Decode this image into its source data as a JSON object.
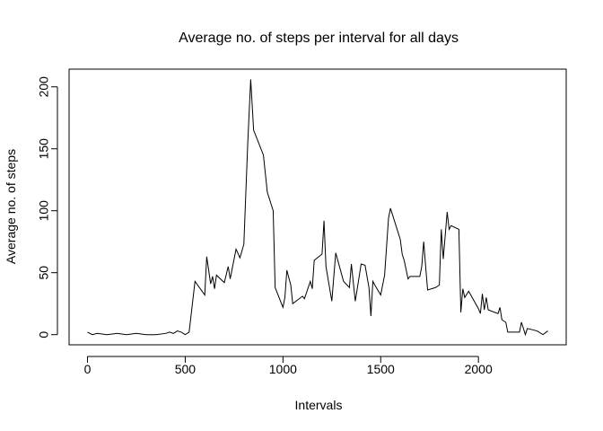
{
  "chart_data": {
    "type": "line",
    "title": "Average no. of steps per interval for all days",
    "xlabel": "Intervals",
    "ylabel": "Average no. of steps",
    "xlim": [
      -94,
      2449
    ],
    "ylim": [
      -8.2,
      214.3
    ],
    "x_ticks": [
      0,
      500,
      1000,
      1500,
      2000
    ],
    "y_ticks": [
      0,
      50,
      100,
      150,
      200
    ],
    "x_tick_labels": [
      "0",
      "500",
      "1000",
      "1500",
      "2000"
    ],
    "y_tick_labels": [
      "0",
      "50",
      "100",
      "150",
      "200"
    ],
    "grid": false,
    "line_color": "#000000",
    "x": [
      0,
      25,
      50,
      100,
      150,
      200,
      250,
      300,
      350,
      400,
      420,
      440,
      460,
      480,
      500,
      520,
      550,
      600,
      610,
      630,
      640,
      650,
      660,
      700,
      720,
      730,
      760,
      780,
      800,
      820,
      825,
      835,
      850,
      900,
      920,
      950,
      960,
      1000,
      1010,
      1020,
      1040,
      1050,
      1100,
      1110,
      1140,
      1150,
      1160,
      1200,
      1210,
      1220,
      1250,
      1270,
      1310,
      1340,
      1350,
      1370,
      1400,
      1420,
      1440,
      1450,
      1460,
      1470,
      1500,
      1520,
      1540,
      1550,
      1600,
      1610,
      1620,
      1640,
      1650,
      1700,
      1710,
      1720,
      1730,
      1740,
      1780,
      1800,
      1810,
      1820,
      1840,
      1850,
      1860,
      1900,
      1910,
      1920,
      1930,
      1950,
      2000,
      2010,
      2020,
      2030,
      2040,
      2050,
      2100,
      2110,
      2120,
      2140,
      2150,
      2200,
      2210,
      2220,
      2240,
      2250,
      2300,
      2330,
      2355
    ],
    "y": [
      2,
      0,
      1,
      0,
      1,
      0,
      1,
      0,
      0,
      1,
      2,
      1,
      3,
      2,
      0,
      2,
      43,
      32,
      63,
      41,
      47,
      37,
      48,
      42,
      55,
      45,
      69,
      62,
      73,
      155,
      172,
      206,
      165,
      145,
      115,
      100,
      38,
      22,
      30,
      52,
      40,
      25,
      31,
      29,
      43,
      37,
      60,
      65,
      92,
      55,
      27,
      66,
      43,
      38,
      57,
      27,
      57,
      56,
      38,
      15,
      43,
      40,
      32,
      48,
      94,
      102,
      77,
      65,
      60,
      45,
      47,
      47,
      55,
      75,
      55,
      36,
      38,
      40,
      85,
      61,
      99,
      85,
      88,
      85,
      18,
      37,
      30,
      35,
      21,
      17,
      33,
      20,
      30,
      20,
      17,
      22,
      12,
      10,
      2,
      2,
      2,
      10,
      0,
      5,
      3,
      0,
      3
    ]
  }
}
